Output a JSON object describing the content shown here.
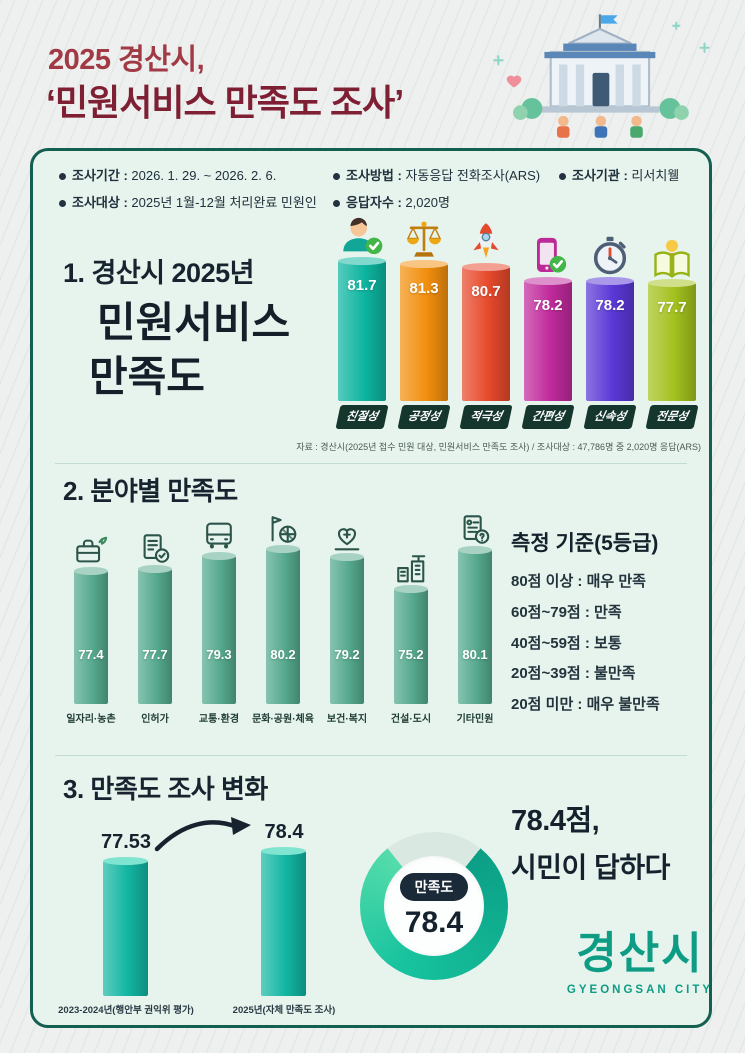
{
  "header": {
    "title_line1": "2025 경산시,",
    "title_line2": "‘민원서비스 만족도 조사’"
  },
  "survey_info": {
    "separator": " : ",
    "items": [
      {
        "label": "조사기간",
        "value": "2026. 1. 29. ~ 2026. 2. 6."
      },
      {
        "label": "조사방법",
        "value": "자동응답 전화조사(ARS)"
      },
      {
        "label": "조사기관",
        "value": "리서치웰"
      },
      {
        "label": "조사대상",
        "value": "2025년 1월-12월 처리완료 민원인"
      },
      {
        "label": "응답자수",
        "value": "2,020명"
      }
    ]
  },
  "section1": {
    "title_line1": "1. 경산시 2025년",
    "title_line2": "민원서비스",
    "title_line3": "만족도",
    "source": "자료 : 경산시(2025년 접수 민원 대상, 민원서비스 만족도 조사) / 조사대상 : 47,786명 중 2,020명 응답(ARS)"
  },
  "section2": {
    "title": "2. 분야별 만족도",
    "criteria": {
      "title": "측정 기준(5등급)",
      "lines": [
        "80점 이상 : 매우 만족",
        "60점~79점 : 만족",
        "40점~59점 : 보통",
        "20점~39점 : 불만족",
        "20점 미만 : 매우 불만족"
      ]
    }
  },
  "section3": {
    "title": "3. 만족도 조사 변화",
    "donut": {
      "label": "만족도",
      "value": 78.4,
      "percent": 78.4
    },
    "headline_line1": "78.4점,",
    "headline_line2": "시민이 답하다"
  },
  "logo": {
    "name": "경산시",
    "subtitle": "GYEONGSAN CITY"
  },
  "colors": {
    "panel_border": "#135f50",
    "panel_bg": "#e7f4ed",
    "title_red": "#7e1f33",
    "teal": "#12b5a2",
    "field_bar_green": "#55a98e",
    "donut_track": "#d9e8e0",
    "ribbon_dark": "#14362c"
  },
  "chart_data": [
    {
      "id": "satisfaction-by-dimension",
      "type": "bar",
      "title": "1. 경산시 2025년 민원서비스 만족도",
      "categories": [
        "친절성",
        "공정성",
        "적극성",
        "간편성",
        "신속성",
        "전문성"
      ],
      "values": [
        81.7,
        81.3,
        80.7,
        78.2,
        78.2,
        77.7
      ],
      "colors": [
        "#0db5a0",
        "#f28f0e",
        "#e6492b",
        "#c02a9c",
        "#5a38d6",
        "#a3c11e"
      ],
      "icons": [
        "person-check-icon",
        "scales-icon",
        "rocket-icon",
        "phone-check-icon",
        "stopwatch-icon",
        "book-idea-icon"
      ],
      "ylim": [
        0,
        100
      ],
      "legend": false
    },
    {
      "id": "satisfaction-by-field",
      "type": "bar",
      "title": "2. 분야별 만족도",
      "categories": [
        "일자리·농촌",
        "인허가",
        "교통·환경",
        "문화·공원·체육",
        "보건·복지",
        "건설·도시",
        "기타민원"
      ],
      "values": [
        77.4,
        77.7,
        79.3,
        80.2,
        79.2,
        75.2,
        80.1
      ],
      "colors": [
        "#55a98e"
      ],
      "icons": [
        "briefcase-sprout-icon",
        "permit-doc-icon",
        "bus-icon",
        "culture-icon",
        "health-heart-icon",
        "construction-icon",
        "etc-doc-icon"
      ],
      "ylim": [
        0,
        100
      ],
      "legend": false
    },
    {
      "id": "satisfaction-trend",
      "type": "bar",
      "title": "3. 만족도 조사 변화",
      "categories": [
        "2023-2024년(행안부 권익위 평가)",
        "2025년(자체 만족도 조사)"
      ],
      "values": [
        77.53,
        78.4
      ],
      "colors": [
        "#12b5a2"
      ],
      "ylim": [
        0,
        100
      ],
      "legend": false
    }
  ]
}
